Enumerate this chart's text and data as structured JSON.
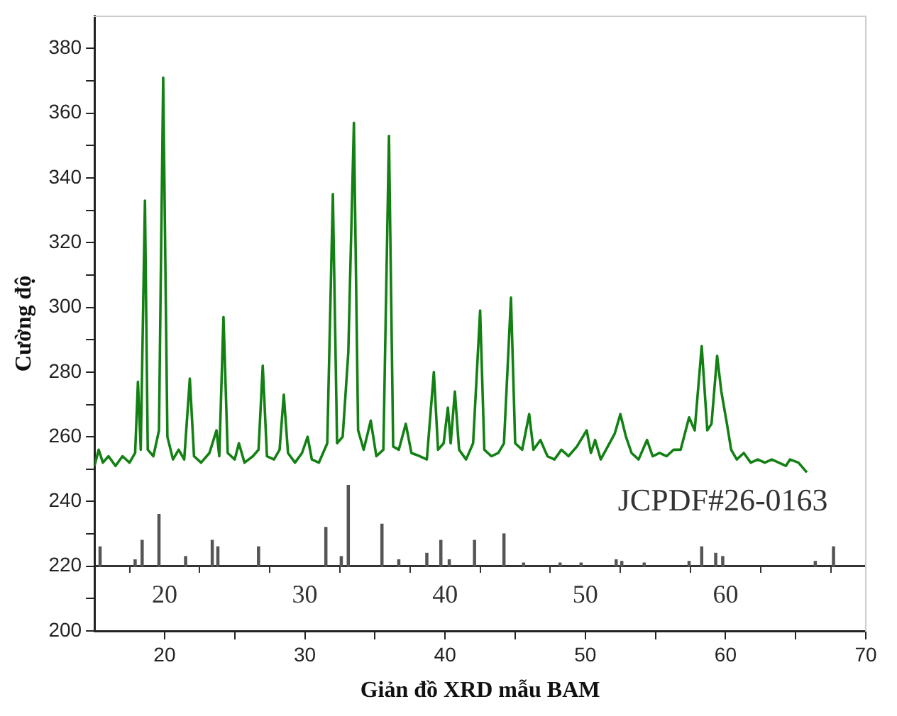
{
  "chart_data": {
    "type": "line",
    "xlabel": "Giản đồ XRD mẫu BAM",
    "ylabel": "Cường độ",
    "xlim": [
      15,
      70
    ],
    "xticks": [
      20,
      {
        "value": 25,
        "label": null
      },
      30,
      {
        "value": 35,
        "label": null
      },
      40,
      {
        "value": 45,
        "label": null
      },
      50,
      {
        "value": 55,
        "label": null
      },
      60,
      {
        "value": 65,
        "label": null
      },
      70
    ],
    "x2lim": [
      15,
      70
    ],
    "x2ticks": [
      20,
      {
        "value": 25,
        "label": null
      },
      30,
      {
        "value": 35,
        "label": null
      },
      40,
      {
        "value": 45,
        "label": null
      },
      50,
      {
        "value": 55,
        "label": null
      },
      60,
      {
        "value": 65,
        "label": null
      }
    ],
    "ylim": [
      200,
      390
    ],
    "yticks": [
      200,
      {
        "value": 210,
        "label": null
      },
      220,
      {
        "value": 230,
        "label": null
      },
      240,
      {
        "value": 250,
        "label": null
      },
      260,
      {
        "value": 270,
        "label": null
      },
      280,
      {
        "value": 290,
        "label": null
      },
      300,
      {
        "value": 310,
        "label": null
      },
      320,
      {
        "value": 330,
        "label": null
      },
      340,
      {
        "value": 350,
        "label": null
      },
      360,
      {
        "value": 370,
        "label": null
      },
      380
    ],
    "grid": false,
    "legend": false,
    "marker": "none",
    "line_style": "solid",
    "series": [
      {
        "color": "#138013",
        "x": [
          15.0,
          15.3,
          15.6,
          16.0,
          16.5,
          17.0,
          17.5,
          17.9,
          18.1,
          18.3,
          18.6,
          18.8,
          19.2,
          19.6,
          19.9,
          20.2,
          20.6,
          21.0,
          21.4,
          21.8,
          22.1,
          22.6,
          23.2,
          23.7,
          23.9,
          24.2,
          24.5,
          25.0,
          25.3,
          25.7,
          26.3,
          26.7,
          27.0,
          27.3,
          27.8,
          28.2,
          28.5,
          28.8,
          29.3,
          29.8,
          30.2,
          30.5,
          31.0,
          31.6,
          32.0,
          32.3,
          32.7,
          33.1,
          33.5,
          33.8,
          34.2,
          34.7,
          35.1,
          35.6,
          36.0,
          36.3,
          36.7,
          37.2,
          37.6,
          38.2,
          38.7,
          39.2,
          39.5,
          39.9,
          40.2,
          40.4,
          40.7,
          41.0,
          41.5,
          42.0,
          42.5,
          42.8,
          43.3,
          43.8,
          44.2,
          44.7,
          45.0,
          45.5,
          46.0,
          46.3,
          46.8,
          47.3,
          47.8,
          48.3,
          48.8,
          49.4,
          50.1,
          50.4,
          50.7,
          51.1,
          51.6,
          52.1,
          52.5,
          52.9,
          53.3,
          53.8,
          54.4,
          54.8,
          55.3,
          55.8,
          56.3,
          56.8,
          57.4,
          57.8,
          58.3,
          58.7,
          59.0,
          59.4,
          59.7,
          60.1,
          60.4,
          60.8,
          61.3,
          61.8,
          62.3,
          62.8,
          63.3,
          63.8,
          64.3,
          64.6,
          65.2,
          65.8
        ],
        "values": [
          251,
          256,
          252,
          254,
          251,
          254,
          252,
          255,
          277,
          256,
          333,
          256,
          254,
          262,
          371,
          260,
          253,
          256,
          253,
          278,
          254,
          252,
          255,
          262,
          254,
          297,
          255,
          253,
          258,
          252,
          254,
          256,
          282,
          254,
          253,
          256,
          273,
          255,
          252,
          255,
          260,
          253,
          252,
          258,
          335,
          258,
          260,
          286,
          357,
          262,
          256,
          265,
          254,
          256,
          353,
          257,
          256,
          264,
          255,
          254,
          253,
          280,
          256,
          258,
          269,
          258,
          274,
          256,
          253,
          258,
          299,
          256,
          254,
          255,
          258,
          303,
          258,
          256,
          267,
          256,
          259,
          254,
          253,
          256,
          254,
          257,
          262,
          255,
          259,
          253,
          257,
          261,
          267,
          260,
          255,
          253,
          259,
          254,
          255,
          254,
          256,
          256,
          266,
          262,
          288,
          262,
          264,
          285,
          274,
          264,
          256,
          253,
          255,
          252,
          253,
          252,
          253,
          252,
          251,
          253,
          252,
          249
        ]
      },
      {
        "type": "bar",
        "name": "JCPDF#26-0163",
        "color": "#555555",
        "axis": "x2",
        "x": [
          15.4,
          17.9,
          18.4,
          19.6,
          21.5,
          23.4,
          23.8,
          26.7,
          31.5,
          32.6,
          33.1,
          35.5,
          36.7,
          38.7,
          39.7,
          40.3,
          42.1,
          44.2,
          45.6,
          48.2,
          49.7,
          52.2,
          52.6,
          54.2,
          57.4,
          58.3,
          59.3,
          59.8,
          66.4,
          67.7
        ],
        "base": [
          220,
          220,
          220,
          220,
          220,
          220,
          220,
          220,
          220,
          220,
          220,
          220,
          220,
          220,
          220,
          220,
          220,
          220,
          220,
          220,
          220,
          220,
          220,
          220,
          220,
          220,
          220,
          220,
          220,
          220
        ],
        "values": [
          6,
          2,
          8,
          16,
          3,
          8,
          6,
          6,
          12,
          3,
          25,
          13,
          2,
          4,
          8,
          2,
          8,
          10,
          1,
          1,
          1,
          2,
          1.5,
          1,
          1.5,
          6,
          4,
          3,
          1.5,
          6
        ]
      }
    ]
  }
}
